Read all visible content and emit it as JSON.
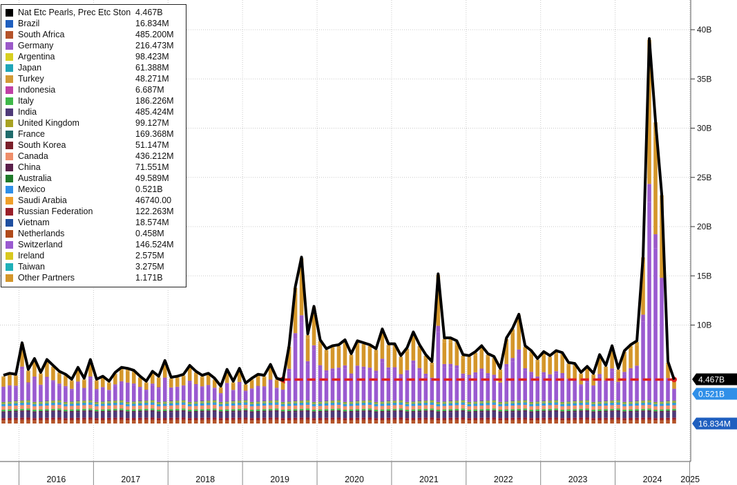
{
  "chart_data": {
    "type": "bar",
    "subtype": "stacked monthly bars with total line",
    "y_axis": {
      "position": "right",
      "ticks": [
        "10B",
        "15B",
        "20B",
        "25B",
        "30B",
        "35B",
        "40B"
      ],
      "tick_values": [
        10,
        15,
        20,
        25,
        30,
        35,
        40
      ],
      "ylim": [
        -4,
        43
      ],
      "unit": "B"
    },
    "x_axis": {
      "year_labels": [
        "2016",
        "2017",
        "2018",
        "2019",
        "2020",
        "2021",
        "2022",
        "2023",
        "2024",
        "2025"
      ],
      "start": "2015-10",
      "end": "2025-05"
    },
    "grid": "vertical dotted lines at year boundaries, horizontal dotted lines at y ticks",
    "legend": {
      "placement": "top-left",
      "entries": [
        {
          "name": "Nat Etc Pearls, Prec Etc Ston",
          "value": "4.467B",
          "color": "#000000"
        },
        {
          "name": "Brazil",
          "value": "16.834M",
          "color": "#1f5fbf"
        },
        {
          "name": "South Africa",
          "value": "485.200M",
          "color": "#b5532a"
        },
        {
          "name": "Germany",
          "value": "216.473M",
          "color": "#9b59c8"
        },
        {
          "name": "Argentina",
          "value": "98.423M",
          "color": "#d8cf1f"
        },
        {
          "name": "Japan",
          "value": "61.388M",
          "color": "#1fa5b8"
        },
        {
          "name": "Turkey",
          "value": "48.271M",
          "color": "#d39a35"
        },
        {
          "name": "Indonesia",
          "value": "6.687M",
          "color": "#c03fa5"
        },
        {
          "name": "Italy",
          "value": "186.226M",
          "color": "#3fb84a"
        },
        {
          "name": "India",
          "value": "485.424M",
          "color": "#4e3a78"
        },
        {
          "name": "United Kingdom",
          "value": "99.127M",
          "color": "#a8a222"
        },
        {
          "name": "France",
          "value": "169.368M",
          "color": "#1f6b6b"
        },
        {
          "name": "South Korea",
          "value": "51.147M",
          "color": "#7a1f2a"
        },
        {
          "name": "Canada",
          "value": "436.212M",
          "color": "#ef8e6a"
        },
        {
          "name": "China",
          "value": "71.551M",
          "color": "#5a1f4a"
        },
        {
          "name": "Australia",
          "value": "49.589M",
          "color": "#1f7a2a"
        },
        {
          "name": "Mexico",
          "value": "0.521B",
          "color": "#2f8fe8"
        },
        {
          "name": "Saudi Arabia",
          "value": "46740.00",
          "color": "#f0a02a"
        },
        {
          "name": "Russian Federation",
          "value": "122.263M",
          "color": "#9a1f2a"
        },
        {
          "name": "Vietnam",
          "value": "18.574M",
          "color": "#1f4fa0"
        },
        {
          "name": "Netherlands",
          "value": "0.458M",
          "color": "#b04a1a"
        },
        {
          "name": "Switzerland",
          "value": "146.524M",
          "color": "#9a5ad0"
        },
        {
          "name": "Ireland",
          "value": "2.575M",
          "color": "#d8c81f"
        },
        {
          "name": "Taiwan",
          "value": "3.275M",
          "color": "#1fb0b8"
        },
        {
          "name": "Other Partners",
          "value": "1.171B",
          "color": "#d4962a"
        }
      ]
    },
    "total_series": {
      "name": "Nat Etc Pearls, Prec Etc Ston",
      "color": "#000000",
      "unit": "B",
      "values": [
        4.9,
        5.1,
        5.0,
        8.2,
        5.5,
        6.6,
        5.2,
        6.5,
        5.9,
        5.3,
        5.0,
        4.5,
        5.7,
        4.6,
        6.5,
        4.5,
        4.8,
        4.3,
        5.2,
        5.7,
        5.6,
        5.4,
        4.8,
        4.3,
        5.3,
        4.8,
        6.4,
        4.7,
        4.8,
        5.0,
        5.9,
        5.3,
        4.9,
        5.1,
        4.6,
        3.8,
        5.5,
        4.3,
        5.6,
        4.1,
        4.6,
        5.0,
        4.9,
        6.0,
        4.6,
        4.4,
        7.9,
        13.9,
        16.9,
        9.1,
        11.9,
        8.5,
        7.6,
        7.9,
        8.0,
        8.5,
        7.1,
        8.4,
        8.2,
        8.0,
        7.6,
        9.6,
        8.1,
        8.1,
        6.9,
        7.7,
        9.3,
        8.0,
        7.0,
        6.3,
        15.2,
        8.7,
        8.7,
        8.4,
        7.0,
        6.9,
        7.3,
        7.9,
        7.1,
        6.8,
        5.6,
        8.7,
        9.7,
        11.1,
        7.9,
        7.4,
        6.6,
        7.3,
        6.9,
        7.4,
        7.2,
        6.2,
        6.1,
        5.2,
        5.8,
        5.1,
        7.0,
        5.9,
        7.9,
        5.6,
        7.4,
        8.0,
        8.4,
        17.0,
        39.1,
        30.7,
        23.3,
        6.3,
        4.467
      ]
    },
    "reference_line": {
      "value_label": "4.467B",
      "color": "#e02020",
      "style": "dashed with left arrow",
      "from": "2019-06",
      "to": "2025-05"
    },
    "right_edge_labels": [
      {
        "text": "4.467B",
        "color": "#000000"
      },
      {
        "text": "0.521B",
        "color": "#2f8fe8"
      },
      {
        "text": "16.834M",
        "color": "#1f5fbf"
      }
    ]
  }
}
